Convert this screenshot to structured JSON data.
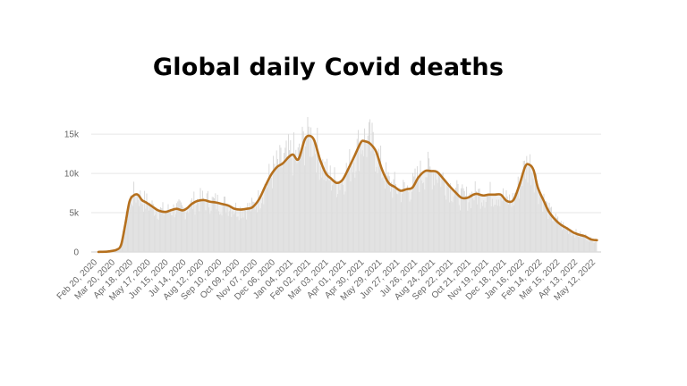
{
  "chart_data": {
    "type": "area",
    "title": "Global daily Covid deaths",
    "xlabel": "",
    "ylabel": "",
    "ylim": [
      0,
      16500
    ],
    "y_ticks": [
      {
        "value": 0,
        "label": "0"
      },
      {
        "value": 5000,
        "label": "5k"
      },
      {
        "value": 10000,
        "label": "10k"
      },
      {
        "value": 15000,
        "label": "15k"
      }
    ],
    "x_tick_labels": [
      "Feb 20, 2020",
      "Mar 20, 2020",
      "Apr 18, 2020",
      "May 17, 2020",
      "Jun 15, 2020",
      "Jul 14, 2020",
      "Aug 12, 2020",
      "Sep 10, 2020",
      "Oct 09, 2020",
      "Nov 07, 2020",
      "Dec 06, 2020",
      "Jan 04, 2021",
      "Feb 02, 2021",
      "Mar 03, 2021",
      "Apr 01, 2021",
      "Apr 30, 2021",
      "May 29, 2021",
      "Jun 27, 2021",
      "Jul 26, 2021",
      "Aug 24, 2021",
      "Sep 22, 2021",
      "Oct 21, 2021",
      "Nov 19, 2021",
      "Dec 18, 2021",
      "Jan 16, 2022",
      "Feb 14, 2022",
      "Mar 15, 2022",
      "Apr 13, 2022",
      "May 12, 2022"
    ],
    "series": [
      {
        "name": "",
        "color": "#b5701e",
        "x": [
          "2020-02-10",
          "2020-02-25",
          "2020-03-05",
          "2020-03-12",
          "2020-03-19",
          "2020-03-26",
          "2020-04-02",
          "2020-04-09",
          "2020-04-16",
          "2020-04-23",
          "2020-04-30",
          "2020-05-10",
          "2020-05-20",
          "2020-06-01",
          "2020-06-10",
          "2020-06-20",
          "2020-06-30",
          "2020-07-08",
          "2020-07-15",
          "2020-07-25",
          "2020-08-05",
          "2020-08-15",
          "2020-08-25",
          "2020-09-05",
          "2020-09-15",
          "2020-09-25",
          "2020-10-05",
          "2020-10-15",
          "2020-10-25",
          "2020-11-05",
          "2020-11-15",
          "2020-11-25",
          "2020-12-05",
          "2020-12-15",
          "2020-12-25",
          "2021-01-01",
          "2021-01-10",
          "2021-01-20",
          "2021-01-27",
          "2021-02-05",
          "2021-02-15",
          "2021-02-25",
          "2021-03-05",
          "2021-03-15",
          "2021-03-25",
          "2021-04-05",
          "2021-04-15",
          "2021-04-25",
          "2021-05-01",
          "2021-05-10",
          "2021-05-20",
          "2021-05-30",
          "2021-06-10",
          "2021-06-20",
          "2021-06-30",
          "2021-07-10",
          "2021-07-20",
          "2021-07-30",
          "2021-08-10",
          "2021-08-20",
          "2021-08-30",
          "2021-09-10",
          "2021-09-20",
          "2021-09-30",
          "2021-10-10",
          "2021-10-20",
          "2021-10-30",
          "2021-11-05",
          "2021-11-15",
          "2021-11-25",
          "2021-12-05",
          "2021-12-15",
          "2021-12-25",
          "2022-01-05",
          "2022-01-15",
          "2022-01-25",
          "2022-02-01",
          "2022-02-08",
          "2022-02-15",
          "2022-02-25",
          "2022-03-05",
          "2022-03-15",
          "2022-03-25",
          "2022-04-05",
          "2022-04-15",
          "2022-04-25",
          "2022-05-05",
          "2022-05-15",
          "2022-05-25"
        ],
        "y": [
          10,
          50,
          150,
          300,
          900,
          3500,
          6400,
          7200,
          7300,
          6600,
          6300,
          5800,
          5300,
          5100,
          5300,
          5500,
          5300,
          5600,
          6100,
          6500,
          6600,
          6400,
          6300,
          6100,
          5900,
          5500,
          5400,
          5500,
          5700,
          6700,
          8300,
          9800,
          10800,
          11300,
          12100,
          12400,
          11800,
          14200,
          14800,
          14300,
          11800,
          10000,
          9400,
          8800,
          9200,
          10800,
          12400,
          14000,
          14100,
          13800,
          12800,
          10500,
          8800,
          8300,
          7800,
          8000,
          8200,
          9500,
          10300,
          10300,
          10200,
          9300,
          8400,
          7600,
          6900,
          6900,
          7300,
          7400,
          7200,
          7300,
          7300,
          7300,
          6500,
          6600,
          8500,
          10900,
          11100,
          10400,
          8200,
          6500,
          5200,
          4200,
          3500,
          3000,
          2500,
          2200,
          2000,
          1600,
          1500
        ]
      }
    ]
  }
}
